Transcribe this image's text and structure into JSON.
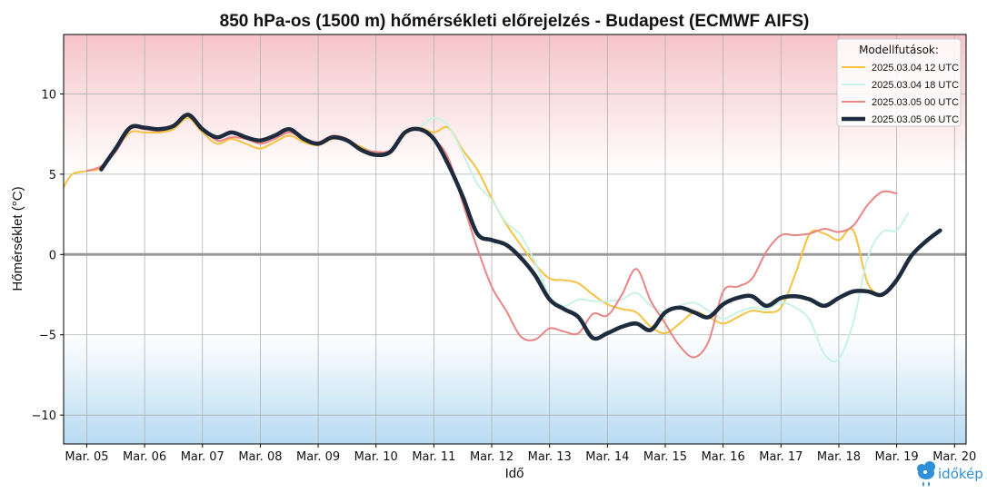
{
  "chart_data": {
    "type": "line",
    "title": "850 hPa-os (1500 m) hőmérsékleti előrejelzés - Budapest (ECMWF AIFS)",
    "xlabel": "Idő",
    "ylabel": "Hőmérséklet (°C)",
    "ylim": [
      -11.8,
      13.7
    ],
    "xlim": [
      4.6,
      20.2
    ],
    "x_tick_values": [
      5,
      6,
      7,
      8,
      9,
      10,
      11,
      12,
      13,
      14,
      15,
      16,
      17,
      18,
      19,
      20
    ],
    "x_tick_labels": [
      "Mar. 05",
      "Mar. 06",
      "Mar. 07",
      "Mar. 08",
      "Mar. 09",
      "Mar. 10",
      "Mar. 11",
      "Mar. 12",
      "Mar. 13",
      "Mar. 14",
      "Mar. 15",
      "Mar. 16",
      "Mar. 17",
      "Mar. 18",
      "Mar. 19",
      "Mar. 20"
    ],
    "y_tick_values": [
      -10,
      -5,
      0,
      5,
      10
    ],
    "y_tick_labels": [
      "−10",
      "−5",
      "0",
      "5",
      "10"
    ],
    "grid": true,
    "zero_line": true,
    "background": {
      "warm_color": "#f5c4c8",
      "cold_color": "#b7dbf2",
      "warm_from": 5,
      "cold_below": -5
    },
    "legend": {
      "title": "Modellfutások:",
      "placement": "top-right"
    },
    "series": [
      {
        "name": "2025.03.04 12 UTC",
        "color": "#f6c242",
        "width": 2,
        "points": [
          [
            4.6,
            4.2
          ],
          [
            4.75,
            5.0
          ],
          [
            5.0,
            5.2
          ],
          [
            5.25,
            5.4
          ],
          [
            5.5,
            6.5
          ],
          [
            5.75,
            7.6
          ],
          [
            6.0,
            7.6
          ],
          [
            6.25,
            7.6
          ],
          [
            6.5,
            7.8
          ],
          [
            6.75,
            8.5
          ],
          [
            7.0,
            7.6
          ],
          [
            7.25,
            6.9
          ],
          [
            7.5,
            7.2
          ],
          [
            7.75,
            6.9
          ],
          [
            8.0,
            6.6
          ],
          [
            8.25,
            7.0
          ],
          [
            8.5,
            7.4
          ],
          [
            8.75,
            7.0
          ],
          [
            9.0,
            6.8
          ],
          [
            9.25,
            7.2
          ],
          [
            9.5,
            7.1
          ],
          [
            9.75,
            6.7
          ],
          [
            10.0,
            6.3
          ],
          [
            10.25,
            6.3
          ],
          [
            10.5,
            7.5
          ],
          [
            10.75,
            7.9
          ],
          [
            11.0,
            7.6
          ],
          [
            11.25,
            7.9
          ],
          [
            11.5,
            6.5
          ],
          [
            11.75,
            5.3
          ],
          [
            12.0,
            3.5
          ],
          [
            12.25,
            1.9
          ],
          [
            12.5,
            0.6
          ],
          [
            12.75,
            -0.6
          ],
          [
            13.0,
            -1.5
          ],
          [
            13.25,
            -1.6
          ],
          [
            13.5,
            -1.8
          ],
          [
            13.75,
            -2.5
          ],
          [
            14.0,
            -3.1
          ],
          [
            14.25,
            -3.4
          ],
          [
            14.5,
            -3.6
          ],
          [
            14.75,
            -4.5
          ],
          [
            15.0,
            -4.9
          ],
          [
            15.25,
            -4.3
          ],
          [
            15.5,
            -3.6
          ],
          [
            15.75,
            -3.9
          ],
          [
            16.0,
            -4.3
          ],
          [
            16.25,
            -3.9
          ],
          [
            16.5,
            -3.5
          ],
          [
            16.75,
            -3.6
          ],
          [
            17.0,
            -3.3
          ],
          [
            17.25,
            -1.2
          ],
          [
            17.5,
            1.3
          ],
          [
            17.75,
            1.3
          ],
          [
            18.0,
            0.9
          ],
          [
            18.25,
            1.5
          ],
          [
            18.5,
            -1.8
          ],
          [
            18.75,
            -2.6
          ]
        ]
      },
      {
        "name": "2025.03.04 18 UTC",
        "color": "#c9f2e6",
        "width": 2,
        "points": [
          [
            10.75,
            7.9
          ],
          [
            11.0,
            8.5
          ],
          [
            11.25,
            8.0
          ],
          [
            11.5,
            6.3
          ],
          [
            11.75,
            4.4
          ],
          [
            12.0,
            3.4
          ],
          [
            12.25,
            2.0
          ],
          [
            12.5,
            1.2
          ],
          [
            12.75,
            -0.5
          ],
          [
            13.0,
            -2.6
          ],
          [
            13.25,
            -3.2
          ],
          [
            13.5,
            -2.8
          ],
          [
            13.75,
            -2.9
          ],
          [
            14.0,
            -2.9
          ],
          [
            14.25,
            -2.8
          ],
          [
            14.5,
            -2.4
          ],
          [
            14.75,
            -3.2
          ],
          [
            15.0,
            -3.6
          ],
          [
            15.25,
            -3.2
          ],
          [
            15.5,
            -3.0
          ],
          [
            15.75,
            -3.5
          ],
          [
            16.0,
            -4.0
          ],
          [
            16.25,
            -3.6
          ],
          [
            16.5,
            -3.3
          ],
          [
            16.75,
            -3.4
          ],
          [
            17.0,
            -3.0
          ],
          [
            17.25,
            -3.3
          ],
          [
            17.5,
            -4.1
          ],
          [
            17.75,
            -6.2
          ],
          [
            18.0,
            -6.5
          ],
          [
            18.25,
            -4.2
          ],
          [
            18.5,
            -0.2
          ],
          [
            18.75,
            1.4
          ],
          [
            19.0,
            1.5
          ],
          [
            19.2,
            2.6
          ]
        ]
      },
      {
        "name": "2025.03.05 00 UTC",
        "color": "#e98585",
        "width": 2,
        "points": [
          [
            5.0,
            5.2
          ],
          [
            5.25,
            5.5
          ],
          [
            5.5,
            6.4
          ],
          [
            5.75,
            7.8
          ],
          [
            6.0,
            7.8
          ],
          [
            6.25,
            7.7
          ],
          [
            6.5,
            8.0
          ],
          [
            6.75,
            8.7
          ],
          [
            7.0,
            7.9
          ],
          [
            7.25,
            7.1
          ],
          [
            7.5,
            7.3
          ],
          [
            7.75,
            7.2
          ],
          [
            8.0,
            6.9
          ],
          [
            8.25,
            7.2
          ],
          [
            8.5,
            7.6
          ],
          [
            8.75,
            7.2
          ],
          [
            9.0,
            7.0
          ],
          [
            9.25,
            7.4
          ],
          [
            9.5,
            7.2
          ],
          [
            9.75,
            6.6
          ],
          [
            10.0,
            6.4
          ],
          [
            10.25,
            6.5
          ],
          [
            10.5,
            7.6
          ],
          [
            10.75,
            7.8
          ],
          [
            11.0,
            7.2
          ],
          [
            11.25,
            6.0
          ],
          [
            11.5,
            3.2
          ],
          [
            11.75,
            0.4
          ],
          [
            12.0,
            -2.0
          ],
          [
            12.25,
            -3.5
          ],
          [
            12.5,
            -5.1
          ],
          [
            12.75,
            -5.3
          ],
          [
            13.0,
            -4.6
          ],
          [
            13.25,
            -4.8
          ],
          [
            13.5,
            -4.9
          ],
          [
            13.75,
            -3.7
          ],
          [
            14.0,
            -3.8
          ],
          [
            14.25,
            -2.5
          ],
          [
            14.5,
            -0.9
          ],
          [
            14.75,
            -2.9
          ],
          [
            15.0,
            -4.3
          ],
          [
            15.25,
            -5.7
          ],
          [
            15.5,
            -6.4
          ],
          [
            15.75,
            -5.4
          ],
          [
            16.0,
            -2.3
          ],
          [
            16.25,
            -2.0
          ],
          [
            16.5,
            -1.5
          ],
          [
            16.75,
            0.2
          ],
          [
            17.0,
            1.2
          ],
          [
            17.25,
            1.2
          ],
          [
            17.5,
            1.3
          ],
          [
            17.75,
            1.6
          ],
          [
            18.0,
            1.4
          ],
          [
            18.25,
            1.8
          ],
          [
            18.5,
            3.1
          ],
          [
            18.75,
            3.9
          ],
          [
            19.0,
            3.8
          ]
        ]
      },
      {
        "name": "2025.03.05 06 UTC",
        "color": "#1d2b3d",
        "width": 4.5,
        "points": [
          [
            5.25,
            5.3
          ],
          [
            5.5,
            6.6
          ],
          [
            5.75,
            7.9
          ],
          [
            6.0,
            7.9
          ],
          [
            6.25,
            7.8
          ],
          [
            6.5,
            8.0
          ],
          [
            6.75,
            8.7
          ],
          [
            7.0,
            7.8
          ],
          [
            7.25,
            7.3
          ],
          [
            7.5,
            7.6
          ],
          [
            7.75,
            7.3
          ],
          [
            8.0,
            7.1
          ],
          [
            8.25,
            7.4
          ],
          [
            8.5,
            7.8
          ],
          [
            8.75,
            7.2
          ],
          [
            9.0,
            6.9
          ],
          [
            9.25,
            7.3
          ],
          [
            9.5,
            7.1
          ],
          [
            9.75,
            6.5
          ],
          [
            10.0,
            6.2
          ],
          [
            10.25,
            6.4
          ],
          [
            10.5,
            7.6
          ],
          [
            10.75,
            7.8
          ],
          [
            11.0,
            7.2
          ],
          [
            11.25,
            5.6
          ],
          [
            11.5,
            3.6
          ],
          [
            11.75,
            1.3
          ],
          [
            12.0,
            0.9
          ],
          [
            12.25,
            0.6
          ],
          [
            12.5,
            -0.2
          ],
          [
            12.75,
            -1.3
          ],
          [
            13.0,
            -2.8
          ],
          [
            13.25,
            -3.4
          ],
          [
            13.5,
            -3.9
          ],
          [
            13.75,
            -5.2
          ],
          [
            14.0,
            -4.9
          ],
          [
            14.25,
            -4.5
          ],
          [
            14.5,
            -4.3
          ],
          [
            14.75,
            -4.7
          ],
          [
            15.0,
            -3.6
          ],
          [
            15.25,
            -3.3
          ],
          [
            15.5,
            -3.6
          ],
          [
            15.75,
            -3.9
          ],
          [
            16.0,
            -3.1
          ],
          [
            16.25,
            -2.7
          ],
          [
            16.5,
            -2.6
          ],
          [
            16.75,
            -3.2
          ],
          [
            17.0,
            -2.7
          ],
          [
            17.25,
            -2.6
          ],
          [
            17.5,
            -2.8
          ],
          [
            17.75,
            -3.2
          ],
          [
            18.0,
            -2.7
          ],
          [
            18.25,
            -2.3
          ],
          [
            18.5,
            -2.3
          ],
          [
            18.75,
            -2.5
          ],
          [
            19.0,
            -1.6
          ],
          [
            19.25,
            -0.1
          ],
          [
            19.5,
            0.8
          ],
          [
            19.75,
            1.5
          ]
        ]
      }
    ]
  },
  "logo": {
    "text": "időkép",
    "color": "#2f8fd8"
  }
}
